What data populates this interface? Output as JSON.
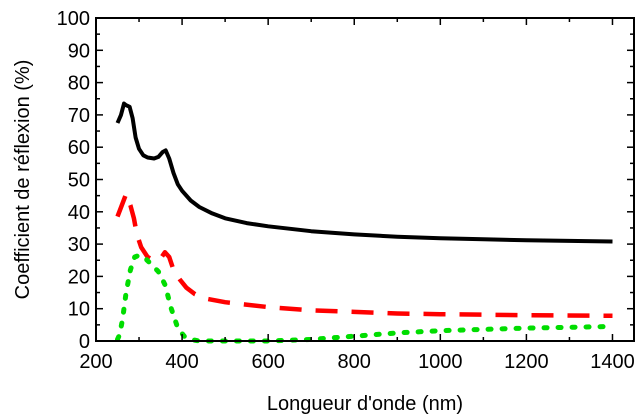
{
  "chart_data": {
    "type": "line",
    "title": "",
    "xlabel": "Longueur d'onde (nm)",
    "ylabel": "Coefficient de réflexion (%)",
    "xlim": [
      200,
      1450
    ],
    "ylim": [
      0,
      100
    ],
    "xticks": [
      200,
      400,
      600,
      800,
      1000,
      1200,
      1400
    ],
    "yticks": [
      0,
      10,
      20,
      30,
      40,
      50,
      60,
      70,
      80,
      90,
      100
    ],
    "grid": false,
    "series": [
      {
        "style": "solid",
        "color": "#000000",
        "points": [
          [
            250,
            67.5
          ],
          [
            258,
            70
          ],
          [
            265,
            73.5
          ],
          [
            270,
            73
          ],
          [
            278,
            72.5
          ],
          [
            285,
            69
          ],
          [
            292,
            63
          ],
          [
            300,
            59.5
          ],
          [
            310,
            57.5
          ],
          [
            320,
            56.8
          ],
          [
            335,
            56.5
          ],
          [
            345,
            57
          ],
          [
            355,
            58.5
          ],
          [
            362,
            59
          ],
          [
            370,
            56.5
          ],
          [
            380,
            52
          ],
          [
            390,
            48.5
          ],
          [
            400,
            46.5
          ],
          [
            420,
            43.5
          ],
          [
            440,
            41.5
          ],
          [
            470,
            39.5
          ],
          [
            500,
            38
          ],
          [
            550,
            36.5
          ],
          [
            600,
            35.5
          ],
          [
            700,
            34
          ],
          [
            800,
            33
          ],
          [
            900,
            32.3
          ],
          [
            1000,
            31.8
          ],
          [
            1100,
            31.5
          ],
          [
            1200,
            31.2
          ],
          [
            1300,
            31
          ],
          [
            1400,
            30.8
          ]
        ]
      },
      {
        "style": "dashed",
        "color": "#ff0000",
        "points": [
          [
            250,
            38.5
          ],
          [
            260,
            42
          ],
          [
            270,
            45.5
          ],
          [
            280,
            42
          ],
          [
            288,
            38
          ],
          [
            295,
            33
          ],
          [
            305,
            29
          ],
          [
            320,
            26
          ],
          [
            335,
            25
          ],
          [
            350,
            25.5
          ],
          [
            360,
            27.5
          ],
          [
            370,
            26
          ],
          [
            380,
            22
          ],
          [
            395,
            19
          ],
          [
            410,
            16.5
          ],
          [
            430,
            14.5
          ],
          [
            460,
            13
          ],
          [
            500,
            12
          ],
          [
            600,
            10.5
          ],
          [
            700,
            9.5
          ],
          [
            800,
            9
          ],
          [
            900,
            8.5
          ],
          [
            1000,
            8.3
          ],
          [
            1200,
            8
          ],
          [
            1400,
            7.8
          ]
        ]
      },
      {
        "style": "dotted",
        "color": "#00dd00",
        "points": [
          [
            250,
            0.5
          ],
          [
            255,
            2
          ],
          [
            262,
            7
          ],
          [
            270,
            15
          ],
          [
            280,
            22
          ],
          [
            290,
            26
          ],
          [
            300,
            26.5
          ],
          [
            315,
            25.5
          ],
          [
            330,
            23.5
          ],
          [
            345,
            21.5
          ],
          [
            360,
            17.5
          ],
          [
            375,
            10
          ],
          [
            390,
            4
          ],
          [
            405,
            1.5
          ],
          [
            420,
            0.5
          ],
          [
            440,
            0
          ],
          [
            500,
            0
          ],
          [
            600,
            0
          ],
          [
            700,
            0.5
          ],
          [
            800,
            1.5
          ],
          [
            900,
            2.5
          ],
          [
            1000,
            3.2
          ],
          [
            1200,
            4
          ],
          [
            1400,
            4.5
          ]
        ]
      }
    ]
  }
}
